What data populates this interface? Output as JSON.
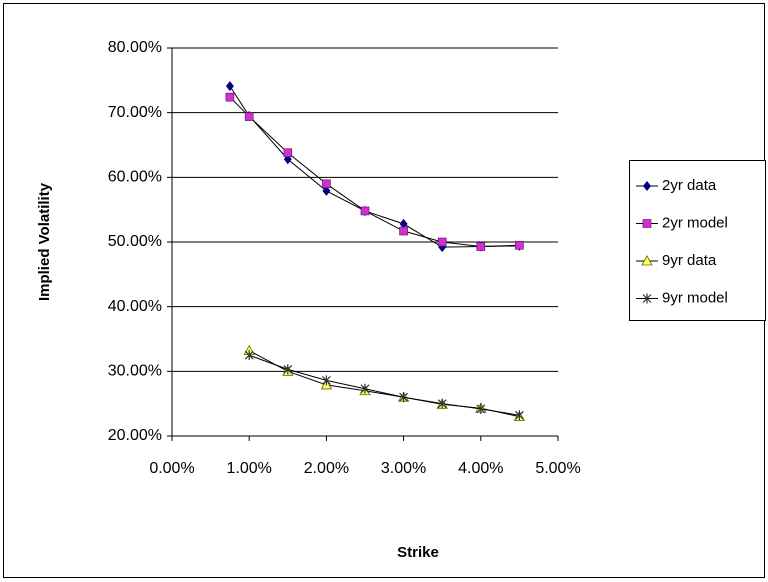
{
  "chart_data": {
    "type": "line",
    "x_label": "Strike",
    "y_label": "Implied Volatility",
    "xlim": [
      0,
      5
    ],
    "ylim": [
      20,
      80
    ],
    "xticks": [
      {
        "value": 0,
        "label": "0.00%"
      },
      {
        "value": 1,
        "label": "1.00%"
      },
      {
        "value": 2,
        "label": "2.00%"
      },
      {
        "value": 3,
        "label": "3.00%"
      },
      {
        "value": 4,
        "label": "4.00%"
      },
      {
        "value": 5,
        "label": "5.00%"
      }
    ],
    "yticks": [
      {
        "value": 20,
        "label": "20.00%"
      },
      {
        "value": 30,
        "label": "30.00%"
      },
      {
        "value": 40,
        "label": "40.00%"
      },
      {
        "value": 50,
        "label": "50.00%"
      },
      {
        "value": 60,
        "label": "60.00%"
      },
      {
        "value": 70,
        "label": "70.00%"
      },
      {
        "value": 80,
        "label": "80.00%"
      }
    ],
    "grid": true,
    "legend": "right",
    "line_color": "#000000",
    "series": [
      {
        "name": "2yr data",
        "marker": "diamond",
        "color": "#000080",
        "x": [
          0.75,
          1,
          1.5,
          2,
          2.5,
          3,
          3.5,
          4,
          4.5
        ],
        "values": [
          74.1,
          69.5,
          62.8,
          57.9,
          54.8,
          52.8,
          49.2,
          49.3,
          49.4
        ]
      },
      {
        "name": "2yr model",
        "marker": "square",
        "color": "#cc33cc",
        "x": [
          0.75,
          1,
          1.5,
          2,
          2.5,
          3,
          3.5,
          4,
          4.5
        ],
        "values": [
          72.4,
          69.4,
          63.8,
          59.0,
          54.8,
          51.7,
          50.0,
          49.3,
          49.5
        ]
      },
      {
        "name": "9yr data",
        "marker": "triangle",
        "color": "#ffff66",
        "x": [
          1,
          1.5,
          2,
          2.5,
          3,
          3.5,
          4,
          4.5
        ],
        "values": [
          33.2,
          30.0,
          27.9,
          27.0,
          26.0,
          24.9,
          24.3,
          23.0
        ]
      },
      {
        "name": "9yr model",
        "marker": "star",
        "color": "#333333",
        "x": [
          1,
          1.5,
          2,
          2.5,
          3,
          3.5,
          4,
          4.5
        ],
        "values": [
          32.5,
          30.3,
          28.6,
          27.3,
          26.0,
          25.0,
          24.2,
          23.2
        ]
      }
    ]
  }
}
